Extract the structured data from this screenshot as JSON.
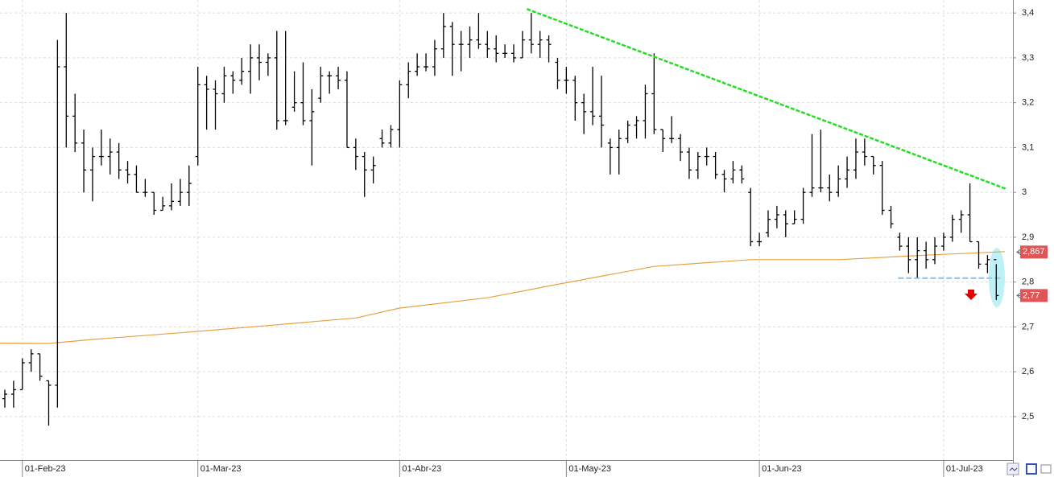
{
  "chart_data": {
    "type": "ohlc",
    "color": "#000000",
    "open": [
      2.54,
      2.55,
      2.56,
      2.62,
      2.64,
      2.58,
      2.57,
      3.28,
      3.17,
      3.11,
      3.05,
      3.08,
      3.08,
      3.09,
      3.05,
      3.04,
      3.0,
      3.0,
      2.96,
      2.97,
      2.98,
      3.0,
      3.08,
      3.24,
      3.23,
      3.22,
      3.26,
      3.25,
      3.27,
      3.3,
      3.29,
      3.3,
      3.16,
      3.19,
      3.2,
      3.16,
      3.21,
      3.26,
      3.26,
      3.25,
      3.1,
      3.08,
      3.05,
      3.12,
      3.11,
      3.14,
      3.24,
      3.27,
      3.28,
      3.28,
      3.32,
      3.37,
      3.33,
      3.33,
      3.34,
      3.33,
      3.32,
      3.31,
      3.31,
      3.3,
      3.34,
      3.33,
      3.34,
      3.29,
      3.25,
      3.25,
      3.2,
      3.18,
      3.17,
      3.11,
      3.1,
      3.12,
      3.15,
      3.16,
      3.22,
      3.14,
      3.12,
      3.12,
      3.09,
      3.05,
      3.08,
      3.08,
      3.04,
      3.03,
      3.05,
      3.0,
      2.89,
      2.91,
      2.94,
      2.95,
      2.93,
      2.94,
      3.0,
      3.01,
      3.01,
      3.0,
      3.03,
      3.05,
      3.09,
      3.08,
      3.06,
      2.96,
      2.9,
      2.88,
      2.85,
      2.87,
      2.85,
      2.88,
      2.9,
      2.94,
      2.95,
      2.89,
      2.84,
      2.85
    ],
    "high": [
      2.56,
      2.58,
      2.63,
      2.65,
      2.64,
      2.58,
      3.34,
      3.4,
      3.22,
      3.14,
      3.1,
      3.14,
      3.12,
      3.11,
      3.07,
      3.06,
      3.03,
      3.0,
      2.99,
      3.02,
      3.03,
      3.06,
      3.28,
      3.26,
      3.25,
      3.28,
      3.27,
      3.3,
      3.33,
      3.33,
      3.31,
      3.36,
      3.36,
      3.27,
      3.29,
      3.23,
      3.28,
      3.27,
      3.28,
      3.27,
      3.12,
      3.09,
      3.08,
      3.14,
      3.15,
      3.25,
      3.29,
      3.31,
      3.31,
      3.34,
      3.4,
      3.38,
      3.36,
      3.37,
      3.4,
      3.36,
      3.35,
      3.33,
      3.33,
      3.36,
      3.4,
      3.36,
      3.35,
      3.3,
      3.28,
      3.26,
      3.22,
      3.28,
      3.26,
      3.12,
      3.14,
      3.16,
      3.17,
      3.24,
      3.31,
      3.14,
      3.17,
      3.13,
      3.1,
      3.09,
      3.1,
      3.09,
      3.05,
      3.07,
      3.06,
      3.01,
      2.91,
      2.96,
      2.97,
      2.96,
      2.96,
      3.01,
      3.13,
      3.14,
      3.04,
      3.06,
      3.08,
      3.12,
      3.12,
      3.08,
      3.07,
      2.97,
      2.91,
      2.9,
      2.9,
      2.89,
      2.9,
      2.91,
      2.95,
      2.96,
      3.02,
      2.89,
      2.86,
      2.84
    ],
    "low": [
      2.52,
      2.52,
      2.56,
      2.6,
      2.58,
      2.48,
      2.52,
      3.1,
      3.09,
      3.0,
      2.98,
      3.06,
      3.04,
      3.03,
      3.02,
      3.0,
      2.99,
      2.95,
      2.96,
      2.96,
      2.97,
      2.97,
      3.06,
      3.14,
      3.14,
      3.2,
      3.22,
      3.24,
      3.22,
      3.25,
      3.26,
      3.14,
      3.15,
      3.18,
      3.15,
      3.06,
      3.2,
      3.22,
      3.23,
      3.1,
      3.05,
      2.99,
      3.02,
      3.1,
      3.1,
      3.1,
      3.21,
      3.26,
      3.27,
      3.26,
      3.3,
      3.26,
      3.27,
      3.3,
      3.32,
      3.3,
      3.29,
      3.3,
      3.29,
      3.3,
      3.31,
      3.3,
      3.29,
      3.23,
      3.22,
      3.16,
      3.13,
      3.15,
      3.1,
      3.04,
      3.04,
      3.11,
      3.12,
      3.12,
      3.13,
      3.09,
      3.11,
      3.07,
      3.03,
      3.03,
      3.06,
      3.03,
      3.0,
      3.02,
      3.02,
      2.88,
      2.88,
      2.9,
      2.92,
      2.9,
      2.93,
      2.93,
      2.99,
      3.0,
      2.98,
      2.99,
      3.01,
      3.03,
      3.06,
      3.04,
      2.95,
      2.92,
      2.87,
      2.82,
      2.81,
      2.83,
      2.84,
      2.87,
      2.89,
      2.91,
      2.89,
      2.83,
      2.82,
      2.76
    ],
    "close": [
      2.55,
      2.56,
      2.62,
      2.64,
      2.59,
      2.57,
      3.28,
      3.17,
      3.11,
      3.05,
      3.08,
      3.08,
      3.09,
      3.05,
      3.04,
      3.0,
      3.0,
      2.96,
      2.97,
      2.98,
      3.0,
      3.02,
      3.24,
      3.23,
      3.22,
      3.26,
      3.25,
      3.27,
      3.3,
      3.29,
      3.3,
      3.16,
      3.16,
      3.2,
      3.16,
      3.18,
      3.26,
      3.26,
      3.25,
      3.1,
      3.08,
      3.05,
      3.06,
      3.11,
      3.14,
      3.24,
      3.27,
      3.28,
      3.28,
      3.32,
      3.37,
      3.33,
      3.33,
      3.34,
      3.33,
      3.32,
      3.31,
      3.31,
      3.3,
      3.34,
      3.33,
      3.34,
      3.33,
      3.25,
      3.25,
      3.2,
      3.18,
      3.17,
      3.15,
      3.1,
      3.12,
      3.15,
      3.16,
      3.22,
      3.14,
      3.12,
      3.12,
      3.09,
      3.05,
      3.08,
      3.08,
      3.04,
      3.03,
      3.05,
      3.03,
      2.89,
      2.89,
      2.94,
      2.95,
      2.93,
      2.94,
      3.0,
      3.01,
      3.01,
      3.0,
      3.03,
      3.05,
      3.09,
      3.08,
      3.06,
      2.96,
      2.93,
      2.88,
      2.85,
      2.87,
      2.85,
      2.88,
      2.9,
      2.94,
      2.95,
      2.89,
      2.84,
      2.85,
      2.77
    ],
    "moving_average": {
      "color": "#e8a040",
      "x": [
        -0.55,
        5,
        10,
        20,
        30,
        40,
        45,
        55,
        63,
        74,
        85,
        95,
        105,
        114
      ],
      "values": [
        2.664,
        2.663,
        2.672,
        2.687,
        2.703,
        2.72,
        2.742,
        2.765,
        2.795,
        2.835,
        2.85,
        2.85,
        2.86,
        2.868
      ]
    },
    "trendline": {
      "color": "#22dd22",
      "x": [
        59.5,
        114.1
      ],
      "values": [
        3.409,
        3.008
      ]
    },
    "support_line": {
      "color": "#a8c8e0",
      "x": [
        101.8,
        113.7
      ],
      "values": [
        2.809,
        2.809
      ]
    },
    "price_labels": [
      {
        "value": 2.867,
        "label": "2,867",
        "color": "#e05555"
      },
      {
        "value": 2.77,
        "label": "2,77",
        "color": "#e05555"
      }
    ],
    "xlim": [
      -0.55,
      114.9
    ],
    "xticks": [
      {
        "value": 2,
        "label": "01-Feb-23"
      },
      {
        "value": 22,
        "label": "01-Mar-23"
      },
      {
        "value": 45,
        "label": "01-Abr-23"
      },
      {
        "value": 64,
        "label": "01-May-23"
      },
      {
        "value": 86,
        "label": "01-Jun-23"
      },
      {
        "value": 107,
        "label": "01-Jul-23"
      }
    ],
    "ylim": [
      2.403,
      3.429
    ],
    "yticks": [
      {
        "value": 2.5,
        "label": "2,5"
      },
      {
        "value": 2.6,
        "label": "2,6"
      },
      {
        "value": 2.7,
        "label": "2,7"
      },
      {
        "value": 2.8,
        "label": "2,8"
      },
      {
        "value": 2.9,
        "label": "2,9"
      },
      {
        "value": 3,
        "label": "3"
      },
      {
        "value": 3.1,
        "label": "3,1"
      },
      {
        "value": 3.2,
        "label": "3,2"
      },
      {
        "value": 3.3,
        "label": "3,3"
      },
      {
        "value": 3.4,
        "label": "3,4"
      }
    ],
    "grid": true
  }
}
